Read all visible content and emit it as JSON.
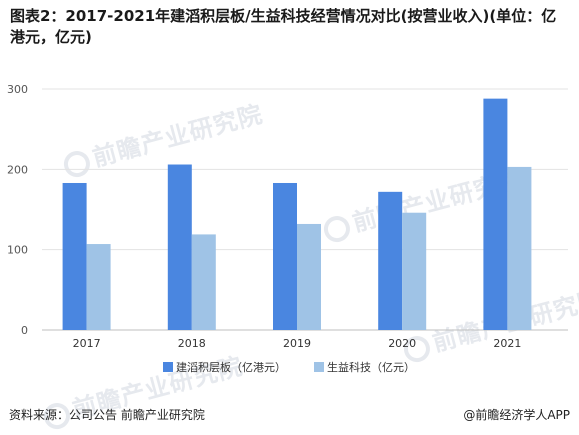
{
  "title": "图表2：2017-2021年建滔积层板/生益科技经营情况对比(按营业收入)(单位：亿港元，亿元)",
  "source": "资料来源：公司公告 前瞻产业研究院",
  "credit": "@前瞻经济学人APP",
  "watermark": "前瞻产业研究院",
  "chart_data": {
    "type": "bar",
    "categories": [
      "2017",
      "2018",
      "2019",
      "2020",
      "2021"
    ],
    "series": [
      {
        "name": "建滔积层板（亿港元）",
        "color": "#4a86e0",
        "values": [
          183,
          206,
          183,
          172,
          288
        ]
      },
      {
        "name": "生益科技（亿元）",
        "color": "#9fc3e6",
        "values": [
          107,
          119,
          132,
          146,
          203
        ]
      }
    ],
    "yticks": [
      0,
      100,
      200,
      300
    ],
    "ylim": [
      0,
      300
    ],
    "grid": true,
    "legend": "bottom"
  }
}
